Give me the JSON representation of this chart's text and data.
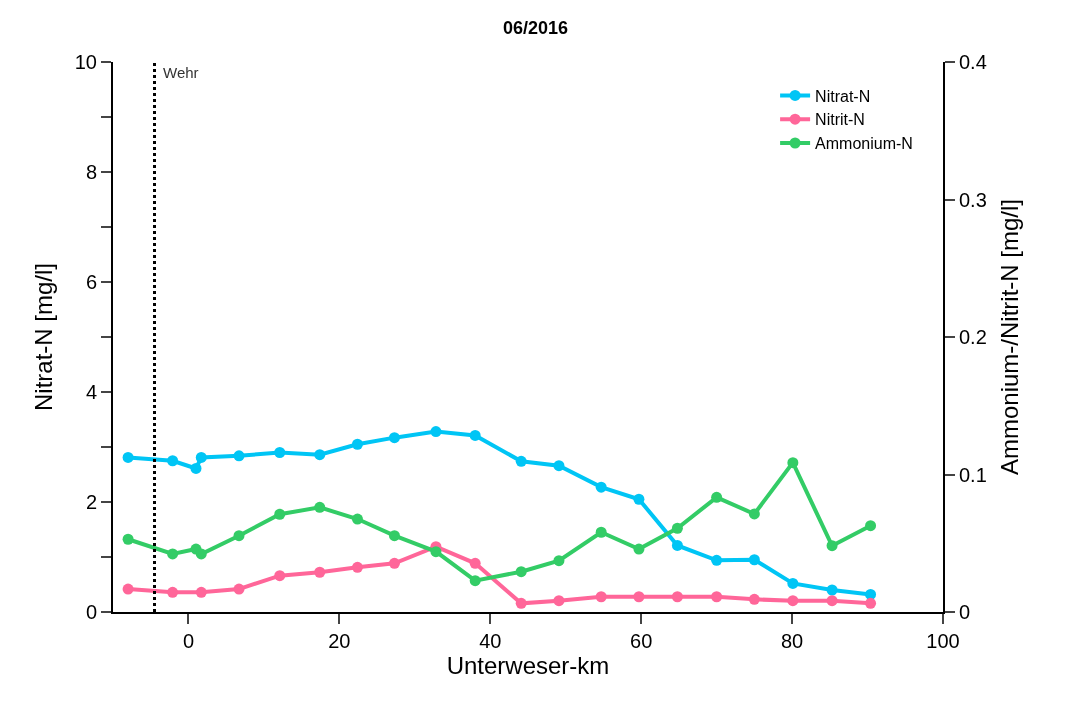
{
  "chart_data": {
    "type": "line",
    "title": "06/2016",
    "xlabel": "Unterweser-km",
    "ylabel": "Nitrat-N [mg/l]",
    "y2label": "Ammonium-/Nitrit-N [mg/l]",
    "xlim": [
      -10,
      100
    ],
    "xticks": [
      0,
      20,
      40,
      60,
      80,
      100
    ],
    "ylim": [
      0,
      10
    ],
    "yticks": [
      0,
      {
        "value": 1,
        "label": null
      },
      2,
      {
        "value": 3,
        "label": null
      },
      4,
      {
        "value": 5,
        "label": null
      },
      6,
      {
        "value": 7,
        "label": null
      },
      8,
      {
        "value": 9,
        "label": null
      },
      10
    ],
    "y2lim": [
      0,
      0.4
    ],
    "y2ticks": [
      0,
      0.1,
      0.2,
      0.3,
      0.4
    ],
    "marker": "circle",
    "line_style": "solid",
    "legend": "top right",
    "ref_lines": [
      {
        "axis": "x",
        "value": -4.5,
        "label": "Wehr",
        "color": "#000000",
        "line_style": "dotted"
      }
    ],
    "series": [
      {
        "name": "Nitrat-N",
        "color": "#00c5f5",
        "x": [
          -8,
          -2.1,
          1.0,
          1.7,
          6.7,
          12.1,
          17.4,
          22.4,
          27.3,
          32.8,
          38.0,
          44.1,
          49.1,
          54.7,
          59.7,
          64.8,
          70.0,
          75.0,
          80.1,
          85.3,
          90.4
        ],
        "values": [
          2.81,
          2.75,
          2.61,
          2.81,
          2.84,
          2.9,
          2.86,
          3.05,
          3.17,
          3.28,
          3.21,
          2.74,
          2.66,
          2.27,
          2.05,
          1.21,
          0.94,
          0.95,
          0.52,
          0.4,
          0.32
        ]
      },
      {
        "name": "Nitrit-N",
        "color": "#ff6699",
        "axis": "y2",
        "x": [
          -8,
          -2.1,
          1.7,
          6.7,
          12.1,
          17.4,
          22.4,
          27.3,
          32.8,
          38.0,
          44.1,
          49.1,
          54.7,
          59.7,
          64.8,
          70.0,
          75.0,
          80.1,
          85.3,
          90.4
        ],
        "values": [
          0.0167,
          0.0143,
          0.0143,
          0.0167,
          0.0264,
          0.0289,
          0.0325,
          0.0354,
          0.0475,
          0.0354,
          0.0063,
          0.0082,
          0.0111,
          0.0111,
          0.0111,
          0.0111,
          0.0092,
          0.0082,
          0.0082,
          0.0063
        ]
      },
      {
        "name": "Ammonium-N",
        "color": "#33cc66",
        "axis": "y2",
        "x": [
          -8,
          -2.1,
          1.0,
          1.7,
          6.7,
          12.1,
          17.4,
          22.4,
          27.3,
          32.8,
          38.0,
          44.1,
          49.1,
          54.7,
          59.7,
          64.8,
          70.0,
          75.0,
          80.1,
          85.3,
          90.4
        ],
        "values": [
          0.0529,
          0.0422,
          0.0458,
          0.0422,
          0.0555,
          0.0711,
          0.0761,
          0.0676,
          0.0555,
          0.0439,
          0.0228,
          0.0293,
          0.0373,
          0.058,
          0.0458,
          0.0609,
          0.0834,
          0.0713,
          0.1086,
          0.0482,
          0.0628
        ]
      }
    ]
  }
}
